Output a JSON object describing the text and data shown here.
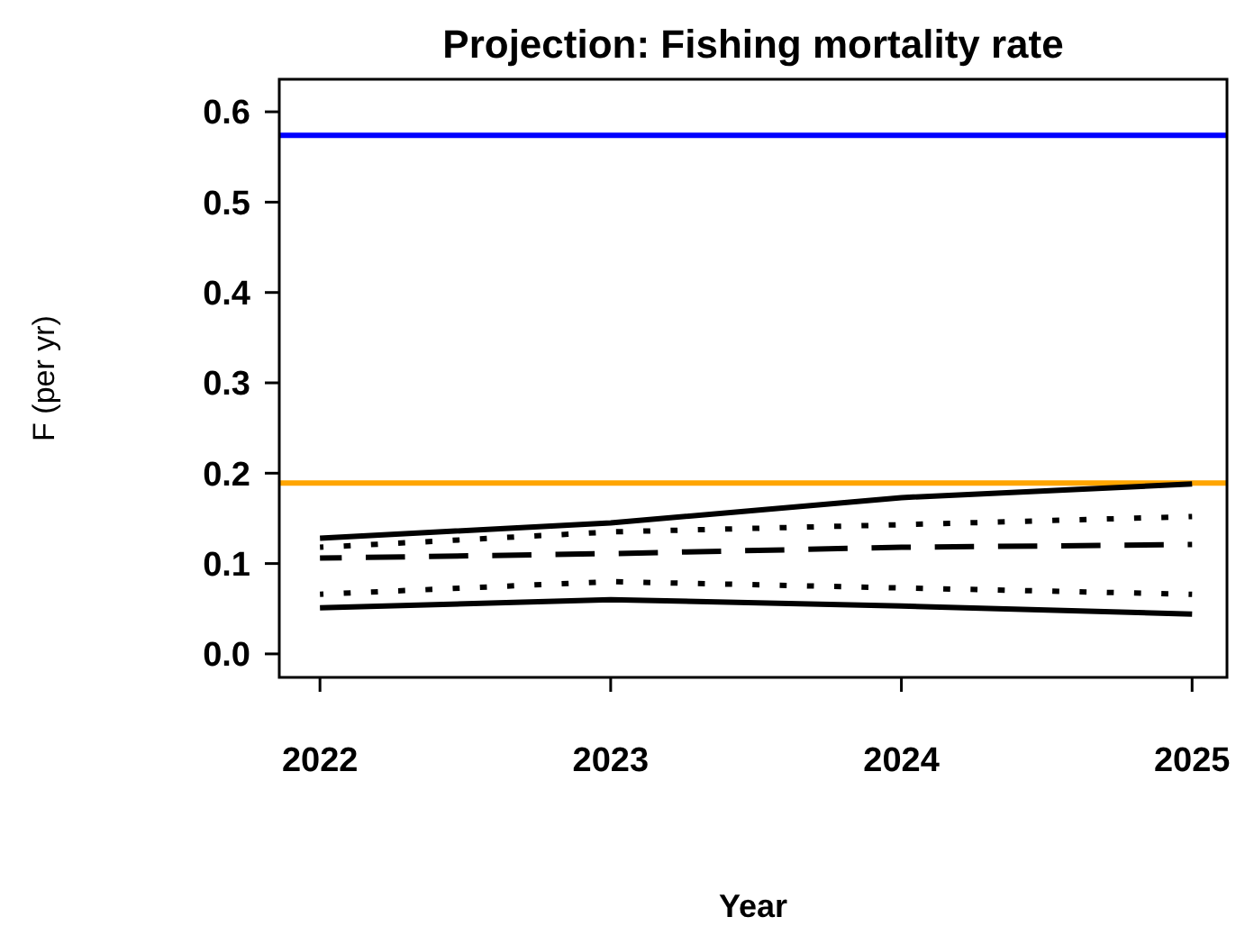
{
  "chart_data": {
    "type": "line",
    "title": "Projection:  Fishing mortality rate",
    "xlabel": "Year",
    "ylabel": "F (per yr)",
    "x": [
      2022,
      2023,
      2024,
      2025
    ],
    "xlim": [
      2021.86,
      2025.12
    ],
    "xticks": [
      2022,
      2023,
      2024,
      2025
    ],
    "ylim": [
      -0.026,
      0.636
    ],
    "yticks": [
      {
        "value": 0,
        "label": "0.0"
      },
      0.1,
      0.2,
      0.3,
      0.4,
      0.5,
      0.6
    ],
    "series": [
      {
        "color": "#000000",
        "line_style": "solid",
        "values": [
          0.128,
          0.145,
          0.173,
          0.188
        ]
      },
      {
        "color": "#000000",
        "line_style": "dotted",
        "values": [
          0.118,
          0.135,
          0.143,
          0.152
        ]
      },
      {
        "color": "#000000",
        "line_style": "dashed",
        "values": [
          0.106,
          0.111,
          0.118,
          0.121
        ]
      },
      {
        "color": "#000000",
        "line_style": "dotted",
        "values": [
          0.066,
          0.08,
          0.073,
          0.066
        ]
      },
      {
        "color": "#000000",
        "line_style": "solid",
        "values": [
          0.051,
          0.06,
          0.053,
          0.044
        ]
      }
    ],
    "ref_lines": [
      {
        "axis": "y",
        "value": 0.574,
        "color": "#0000ff"
      },
      {
        "axis": "y",
        "value": 0.189,
        "color": "#ffa500"
      }
    ],
    "marker": "none",
    "grid": false
  }
}
